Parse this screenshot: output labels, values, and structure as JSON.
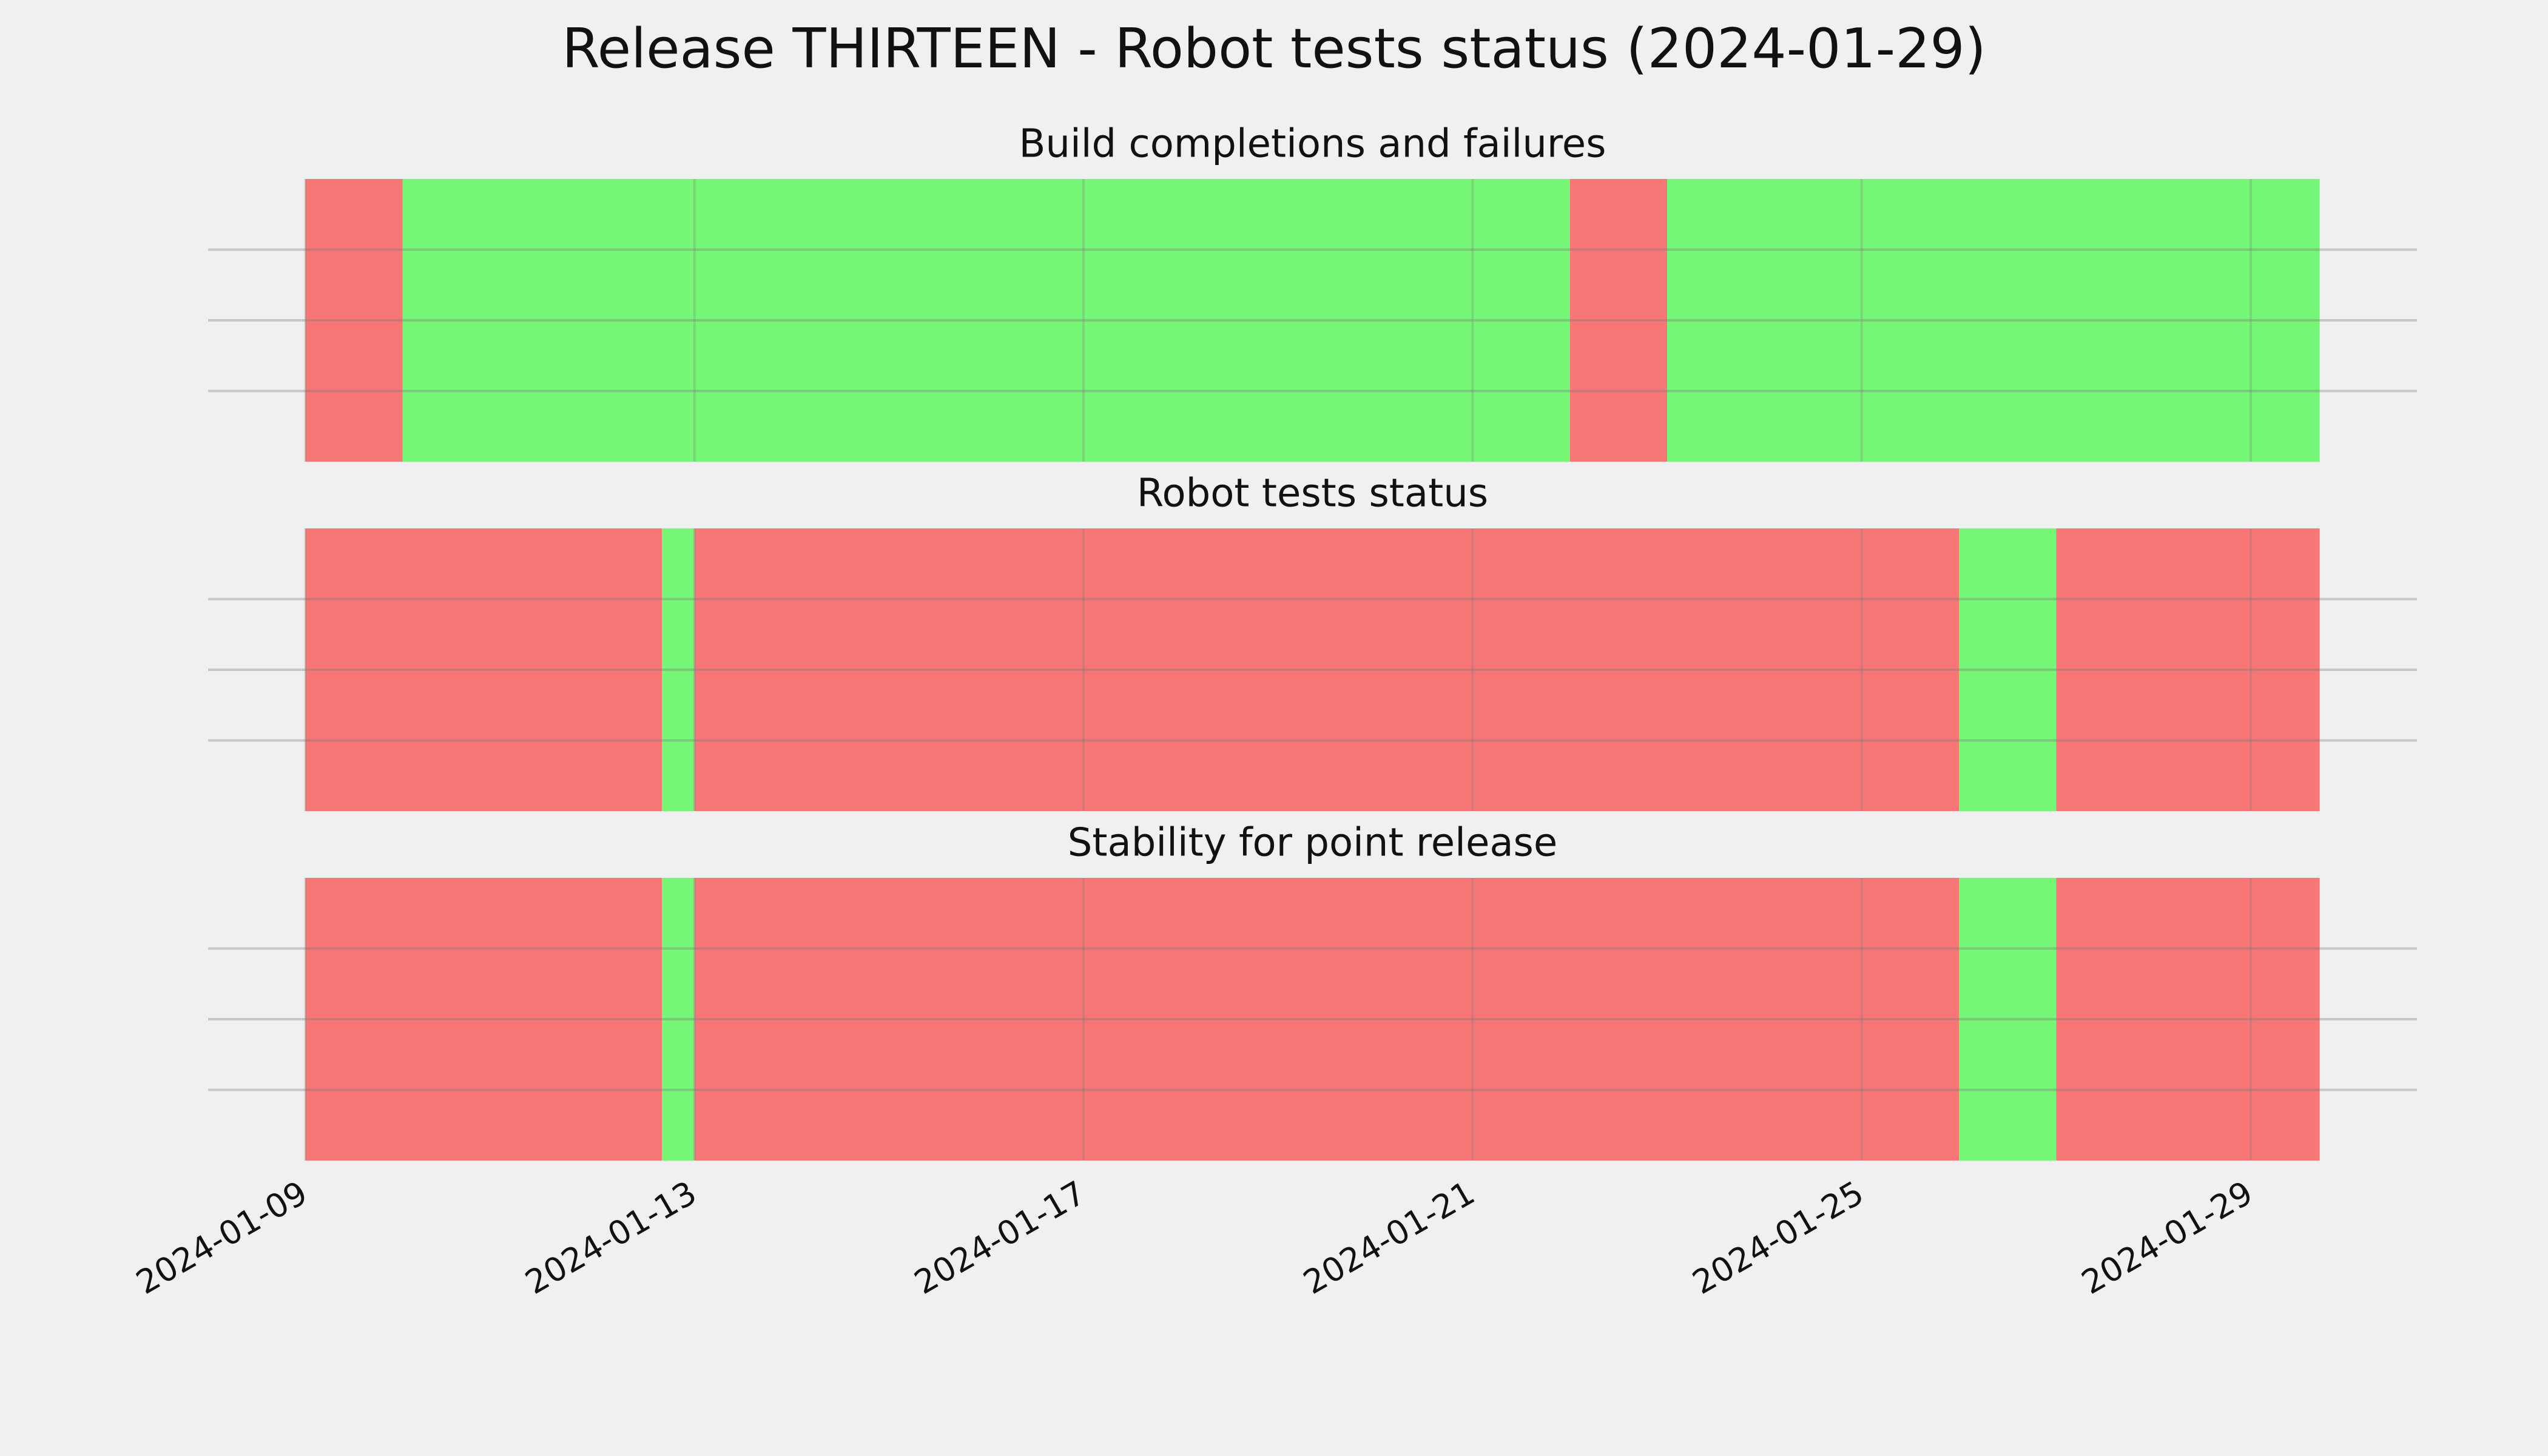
{
  "title": "Release THIRTEEN - Robot tests status (2024-01-29)",
  "shared_x": {
    "xlim": [
      "2024-01-08T00:00",
      "2024-01-30T17:00"
    ],
    "xticks": [
      "2024-01-09",
      "2024-01-13",
      "2024-01-17",
      "2024-01-21",
      "2024-01-25",
      "2024-01-29"
    ]
  },
  "chart_data": [
    {
      "type": "span",
      "title": "Build completions and failures",
      "starts": [
        "2024-01-09",
        "2024-01-10",
        "2024-01-22",
        "2024-01-23"
      ],
      "ends": [
        "2024-01-10",
        "2024-01-22",
        "2024-01-23",
        "2024-01-29T17:00"
      ],
      "colors": [
        "#f77777",
        "#77f777",
        "#f77777",
        "#77f777"
      ],
      "ylim": [
        0,
        1
      ],
      "yticks": [
        0.25,
        0.5,
        0.75
      ],
      "grid": true
    },
    {
      "type": "span",
      "title": "Robot tests status",
      "starts": [
        "2024-01-09",
        "2024-01-12T16:00",
        "2024-01-13",
        "2024-01-26",
        "2024-01-27"
      ],
      "ends": [
        "2024-01-12T16:00",
        "2024-01-13",
        "2024-01-26",
        "2024-01-27",
        "2024-01-29T17:00"
      ],
      "colors": [
        "#f77777",
        "#77f777",
        "#f77777",
        "#77f777",
        "#f77777"
      ],
      "ylim": [
        0,
        1
      ],
      "yticks": [
        0.25,
        0.5,
        0.75
      ],
      "grid": true
    },
    {
      "type": "span",
      "title": "Stability for point release",
      "starts": [
        "2024-01-09",
        "2024-01-12T16:00",
        "2024-01-13",
        "2024-01-26",
        "2024-01-27"
      ],
      "ends": [
        "2024-01-12T16:00",
        "2024-01-13",
        "2024-01-26",
        "2024-01-27",
        "2024-01-29T17:00"
      ],
      "colors": [
        "#f77777",
        "#77f777",
        "#f77777",
        "#77f777",
        "#f77777"
      ],
      "ylim": [
        0,
        1
      ],
      "yticks": [
        0.25,
        0.5,
        0.75
      ],
      "grid": true
    }
  ]
}
